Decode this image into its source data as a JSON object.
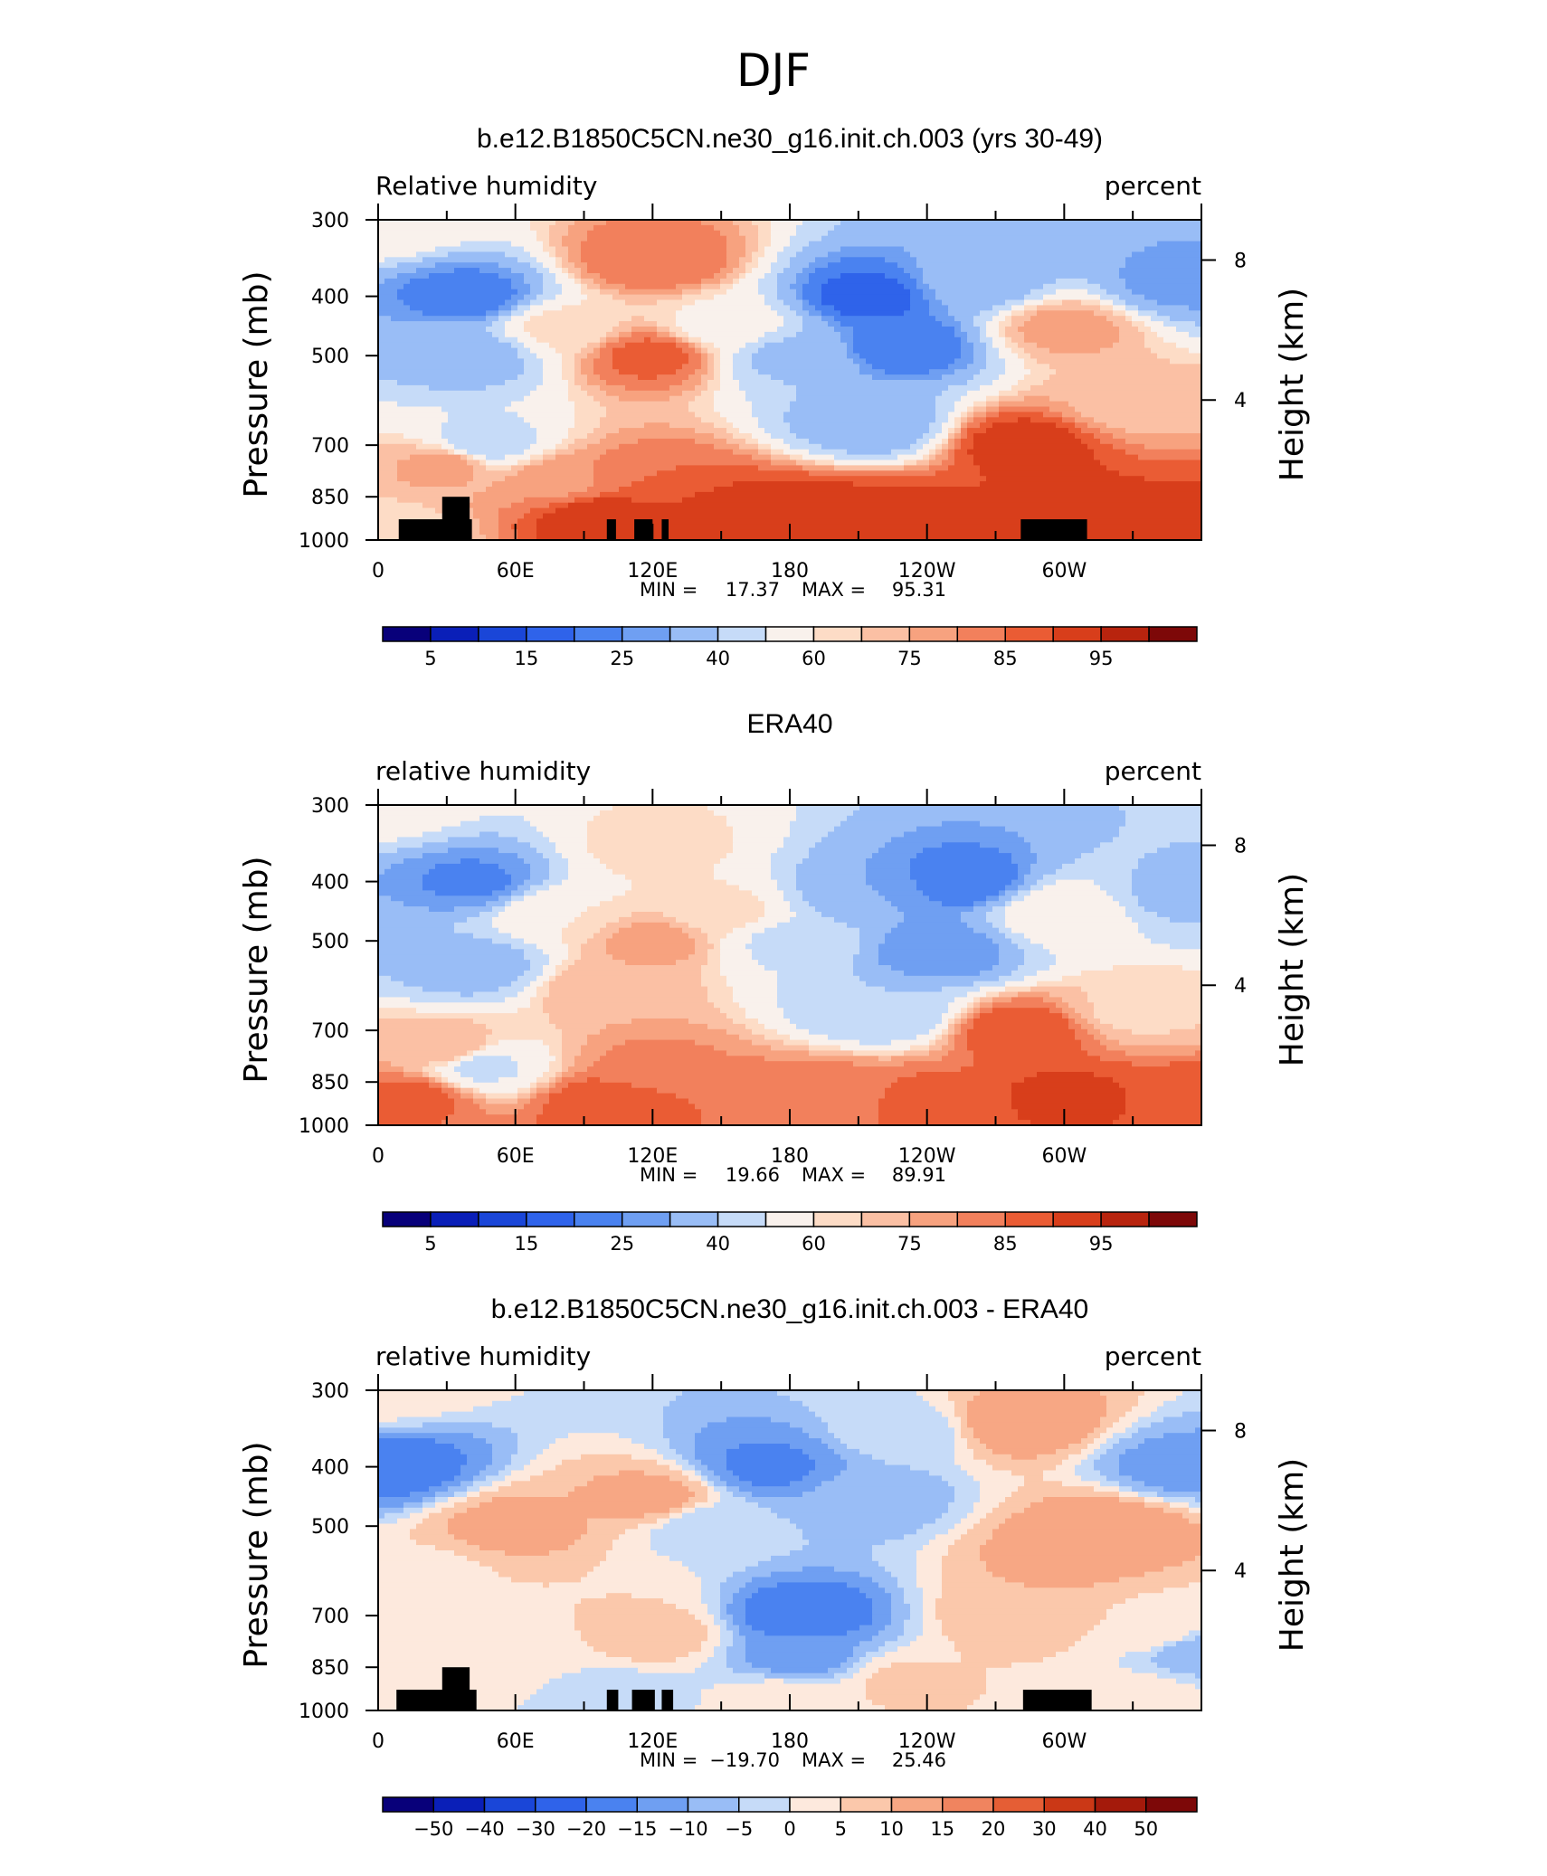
{
  "page_title": "DJF",
  "chart_data": [
    {
      "type": "contour",
      "title": "b.e12.B1850C5CN.ne30_g16.init.ch.003 (yrs 30-49)",
      "variable_label": "Relative humidity",
      "units_label": "percent",
      "ylabel": "Pressure (mb)",
      "ylabel_right": "Height (km)",
      "x_tick_labels": [
        "0",
        "60E",
        "120E",
        "180",
        "120W",
        "60W"
      ],
      "x_tick_lon": [
        0,
        60,
        120,
        180,
        240,
        300
      ],
      "xlim": [
        0,
        360
      ],
      "y_tick_labels": [
        "300",
        "400",
        "500",
        "700",
        "850",
        "1000"
      ],
      "y_ticks": [
        300,
        400,
        500,
        700,
        850,
        1000
      ],
      "ylim": [
        1000,
        300
      ],
      "y_right_tick_labels": [
        "8",
        "4"
      ],
      "stats": {
        "min_label": "MIN =",
        "min_value": "17.37",
        "max_label": "MAX =",
        "max_value": "95.31"
      },
      "colorbar_labels": [
        "5",
        "15",
        "25",
        "40",
        "60",
        "75",
        "85",
        "95"
      ],
      "levels": [
        5,
        10,
        15,
        20,
        25,
        30,
        40,
        50,
        60,
        65,
        70,
        75,
        80,
        85,
        90,
        95
      ],
      "field": [
        {
          "lon": 0,
          "p": 300,
          "v": 60
        },
        {
          "lon": 0,
          "p": 1000,
          "v": 60
        },
        {
          "lon": 40,
          "p": 400,
          "v": 22
        },
        {
          "lon": 40,
          "p": 500,
          "v": 35
        },
        {
          "lon": 30,
          "p": 750,
          "v": 72
        },
        {
          "lon": 45,
          "p": 700,
          "v": 45
        },
        {
          "lon": 80,
          "p": 450,
          "v": 62
        },
        {
          "lon": 80,
          "p": 800,
          "v": 74
        },
        {
          "lon": 120,
          "p": 500,
          "v": 82
        },
        {
          "lon": 120,
          "p": 350,
          "v": 80
        },
        {
          "lon": 120,
          "p": 800,
          "v": 80
        },
        {
          "lon": 150,
          "p": 450,
          "v": 58
        },
        {
          "lon": 150,
          "p": 900,
          "v": 88
        },
        {
          "lon": 180,
          "p": 500,
          "v": 38
        },
        {
          "lon": 180,
          "p": 920,
          "v": 86
        },
        {
          "lon": 215,
          "p": 400,
          "v": 18
        },
        {
          "lon": 230,
          "p": 480,
          "v": 20
        },
        {
          "lon": 215,
          "p": 650,
          "v": 32
        },
        {
          "lon": 240,
          "p": 900,
          "v": 86
        },
        {
          "lon": 262,
          "p": 380,
          "v": 34
        },
        {
          "lon": 282,
          "p": 700,
          "v": 88
        },
        {
          "lon": 300,
          "p": 450,
          "v": 72
        },
        {
          "lon": 300,
          "p": 900,
          "v": 88
        },
        {
          "lon": 330,
          "p": 600,
          "v": 68
        },
        {
          "lon": 350,
          "p": 380,
          "v": 28
        },
        {
          "lon": 360,
          "p": 920,
          "v": 86
        },
        {
          "lon": 100,
          "p": 920,
          "v": 90
        },
        {
          "lon": 200,
          "p": 900,
          "v": 88
        }
      ],
      "topography": [
        {
          "lon_start": 9,
          "lon_end": 41,
          "p_top": 925
        },
        {
          "lon_start": 28,
          "lon_end": 40,
          "p_top": 850
        },
        {
          "lon_start": 100,
          "lon_end": 104,
          "p_top": 925
        },
        {
          "lon_start": 112,
          "lon_end": 120,
          "p_top": 925
        },
        {
          "lon_start": 124,
          "lon_end": 127,
          "p_top": 925
        },
        {
          "lon_start": 281,
          "lon_end": 310,
          "p_top": 925
        }
      ]
    },
    {
      "type": "contour",
      "title": "ERA40",
      "variable_label": "relative humidity",
      "units_label": "percent",
      "ylabel": "Pressure (mb)",
      "ylabel_right": "Height (km)",
      "x_tick_labels": [
        "0",
        "60E",
        "120E",
        "180",
        "120W",
        "60W"
      ],
      "x_tick_lon": [
        0,
        60,
        120,
        180,
        240,
        300
      ],
      "xlim": [
        0,
        360
      ],
      "y_tick_labels": [
        "300",
        "400",
        "500",
        "700",
        "850",
        "1000"
      ],
      "y_ticks": [
        300,
        400,
        500,
        700,
        850,
        1000
      ],
      "ylim": [
        1000,
        300
      ],
      "y_right_tick_labels": [
        "8",
        "4"
      ],
      "stats": {
        "min_label": "MIN =",
        "min_value": "19.66",
        "max_label": "MAX =",
        "max_value": "89.91"
      },
      "colorbar_labels": [
        "5",
        "15",
        "25",
        "40",
        "60",
        "75",
        "85",
        "95"
      ],
      "levels": [
        5,
        10,
        15,
        20,
        25,
        30,
        40,
        50,
        60,
        65,
        70,
        75,
        80,
        85,
        90,
        95
      ],
      "field": [
        {
          "lon": 0,
          "p": 300,
          "v": 55
        },
        {
          "lon": 0,
          "p": 1000,
          "v": 80
        },
        {
          "lon": 42,
          "p": 400,
          "v": 24
        },
        {
          "lon": 42,
          "p": 550,
          "v": 35
        },
        {
          "lon": 30,
          "p": 750,
          "v": 70
        },
        {
          "lon": 45,
          "p": 800,
          "v": 48
        },
        {
          "lon": 80,
          "p": 450,
          "v": 60
        },
        {
          "lon": 100,
          "p": 600,
          "v": 70
        },
        {
          "lon": 120,
          "p": 500,
          "v": 72
        },
        {
          "lon": 120,
          "p": 350,
          "v": 62
        },
        {
          "lon": 120,
          "p": 800,
          "v": 76
        },
        {
          "lon": 150,
          "p": 450,
          "v": 62
        },
        {
          "lon": 100,
          "p": 920,
          "v": 84
        },
        {
          "lon": 180,
          "p": 500,
          "v": 48
        },
        {
          "lon": 180,
          "p": 920,
          "v": 80
        },
        {
          "lon": 215,
          "p": 420,
          "v": 30
        },
        {
          "lon": 255,
          "p": 400,
          "v": 21
        },
        {
          "lon": 245,
          "p": 520,
          "v": 25
        },
        {
          "lon": 220,
          "p": 650,
          "v": 40
        },
        {
          "lon": 240,
          "p": 920,
          "v": 82
        },
        {
          "lon": 282,
          "p": 700,
          "v": 84
        },
        {
          "lon": 300,
          "p": 450,
          "v": 60
        },
        {
          "lon": 300,
          "p": 900,
          "v": 86
        },
        {
          "lon": 330,
          "p": 650,
          "v": 64
        },
        {
          "lon": 350,
          "p": 420,
          "v": 38
        },
        {
          "lon": 360,
          "p": 920,
          "v": 84
        },
        {
          "lon": 200,
          "p": 900,
          "v": 78
        },
        {
          "lon": 15,
          "p": 900,
          "v": 82
        }
      ],
      "topography": []
    },
    {
      "type": "contour",
      "title": "b.e12.B1850C5CN.ne30_g16.init.ch.003 - ERA40",
      "variable_label": "relative humidity",
      "units_label": "percent",
      "ylabel": "Pressure (mb)",
      "ylabel_right": "Height (km)",
      "x_tick_labels": [
        "0",
        "60E",
        "120E",
        "180",
        "120W",
        "60W"
      ],
      "x_tick_lon": [
        0,
        60,
        120,
        180,
        240,
        300
      ],
      "xlim": [
        0,
        360
      ],
      "y_tick_labels": [
        "300",
        "400",
        "500",
        "700",
        "850",
        "1000"
      ],
      "y_ticks": [
        300,
        400,
        500,
        700,
        850,
        1000
      ],
      "ylim": [
        1000,
        300
      ],
      "y_right_tick_labels": [
        "8",
        "4"
      ],
      "stats": {
        "min_label": "MIN =",
        "min_value": "−19.70",
        "max_label": "MAX =",
        "max_value": "25.46"
      },
      "colorbar_labels": [
        "−50",
        "−40",
        "−30",
        "−20",
        "−15",
        "−10",
        "−5",
        "0",
        "5",
        "10",
        "15",
        "20",
        "30",
        "40",
        "50"
      ],
      "levels": [
        -50,
        -40,
        -30,
        -20,
        -15,
        -10,
        -5,
        0,
        5,
        10,
        15,
        20,
        30,
        40,
        50
      ],
      "field": [
        {
          "lon": 0,
          "p": 300,
          "v": 3
        },
        {
          "lon": 5,
          "p": 400,
          "v": -18
        },
        {
          "lon": 20,
          "p": 600,
          "v": 4
        },
        {
          "lon": 60,
          "p": 500,
          "v": 12
        },
        {
          "lon": 60,
          "p": 800,
          "v": 3
        },
        {
          "lon": 100,
          "p": 650,
          "v": 5
        },
        {
          "lon": 120,
          "p": 450,
          "v": 12
        },
        {
          "lon": 120,
          "p": 750,
          "v": 8
        },
        {
          "lon": 145,
          "p": 500,
          "v": -4
        },
        {
          "lon": 170,
          "p": 400,
          "v": -16
        },
        {
          "lon": 185,
          "p": 700,
          "v": -19
        },
        {
          "lon": 185,
          "p": 820,
          "v": -12
        },
        {
          "lon": 215,
          "p": 450,
          "v": -8
        },
        {
          "lon": 230,
          "p": 350,
          "v": -3
        },
        {
          "lon": 230,
          "p": 900,
          "v": 6
        },
        {
          "lon": 180,
          "p": 960,
          "v": 4
        },
        {
          "lon": 280,
          "p": 340,
          "v": 14
        },
        {
          "lon": 282,
          "p": 700,
          "v": 10
        },
        {
          "lon": 300,
          "p": 550,
          "v": 12
        },
        {
          "lon": 320,
          "p": 500,
          "v": 14
        },
        {
          "lon": 340,
          "p": 750,
          "v": 4
        },
        {
          "lon": 350,
          "p": 400,
          "v": -12
        },
        {
          "lon": 355,
          "p": 800,
          "v": -8
        },
        {
          "lon": 40,
          "p": 870,
          "v": 2
        },
        {
          "lon": 100,
          "p": 950,
          "v": -3
        },
        {
          "lon": 330,
          "p": 950,
          "v": 3
        }
      ],
      "topography": [
        {
          "lon_start": 8,
          "lon_end": 43,
          "p_top": 925
        },
        {
          "lon_start": 28,
          "lon_end": 40,
          "p_top": 850
        },
        {
          "lon_start": 100,
          "lon_end": 105,
          "p_top": 925
        },
        {
          "lon_start": 111,
          "lon_end": 121,
          "p_top": 925
        },
        {
          "lon_start": 124,
          "lon_end": 129,
          "p_top": 925
        },
        {
          "lon_start": 282,
          "lon_end": 312,
          "p_top": 925
        }
      ]
    }
  ],
  "colors": {
    "abs_palette": [
      "#08007a",
      "#0a1fb8",
      "#1a46d8",
      "#2f63ea",
      "#4a82f0",
      "#6f9ff2",
      "#99bdf6",
      "#c6dbf8",
      "#f9f1ec",
      "#fddcc6",
      "#fbc0a4",
      "#f7a27f",
      "#f2805c",
      "#ea5c34",
      "#d83e1b",
      "#b8240e",
      "#7d0808"
    ],
    "diff_palette": [
      "#08007a",
      "#0a1fb8",
      "#1a46d8",
      "#2f63ea",
      "#4a82f0",
      "#6f9ff2",
      "#99bdf6",
      "#c6dbf8",
      "#fde9dd",
      "#fbc8ab",
      "#f7a784",
      "#f0845f",
      "#e55e35",
      "#cb3816",
      "#a41a0b",
      "#7d0808"
    ],
    "topography": "#000000"
  }
}
